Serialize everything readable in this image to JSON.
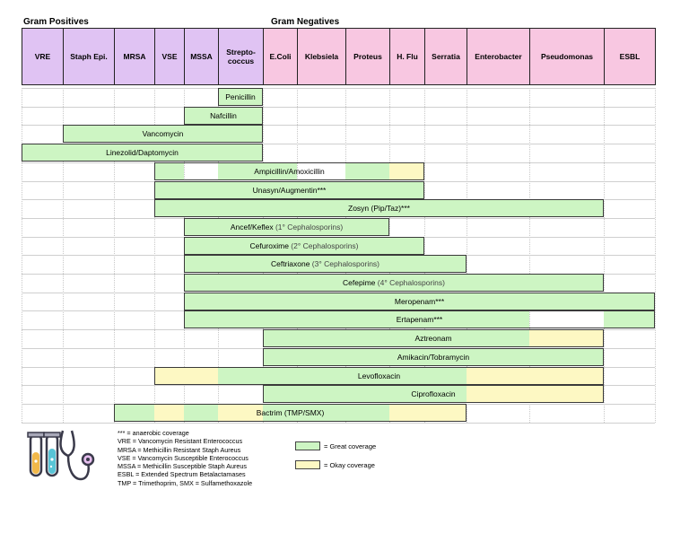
{
  "groups": {
    "positives": "Gram Positives",
    "negatives": "Gram Negatives"
  },
  "columns": [
    {
      "id": "vre",
      "label": "VRE",
      "group": "pos"
    },
    {
      "id": "staph_epi",
      "label": "Staph Epi.",
      "group": "pos"
    },
    {
      "id": "mrsa",
      "label": "MRSA",
      "group": "pos"
    },
    {
      "id": "vse",
      "label": "VSE",
      "group": "pos"
    },
    {
      "id": "mssa",
      "label": "MSSA",
      "group": "pos"
    },
    {
      "id": "strep",
      "label": "Strepto-coccus",
      "group": "pos"
    },
    {
      "id": "ecoli",
      "label": "E.Coli",
      "group": "neg"
    },
    {
      "id": "klebsiela",
      "label": "Klebsiela",
      "group": "neg"
    },
    {
      "id": "proteus",
      "label": "Proteus",
      "group": "neg"
    },
    {
      "id": "hflu",
      "label": "H. Flu",
      "group": "neg"
    },
    {
      "id": "serratia",
      "label": "Serratia",
      "group": "neg"
    },
    {
      "id": "enterobacter",
      "label": "Enterobacter",
      "group": "neg"
    },
    {
      "id": "pseudomonas",
      "label": "Pseudomonas",
      "group": "neg"
    },
    {
      "id": "esbl",
      "label": "ESBL",
      "group": "neg"
    }
  ],
  "drugs": [
    {
      "name": "Penicillin",
      "generation": "",
      "coverage": {
        "great": [
          5
        ]
      },
      "okay": []
    },
    {
      "name": "Nafcillin",
      "generation": "",
      "coverage": {
        "great": [
          4,
          5
        ]
      },
      "okay": []
    },
    {
      "name": "Vancomycin",
      "generation": "",
      "coverage": {
        "great": [
          1,
          2,
          3,
          4,
          5
        ]
      },
      "okay": []
    },
    {
      "name": "Linezolid/Daptomycin",
      "generation": "",
      "coverage": {
        "great": [
          0,
          1,
          2,
          3,
          4,
          5
        ]
      },
      "okay": []
    },
    {
      "name": "Ampicillin/Amoxicillin",
      "generation": "",
      "coverage": {
        "great": [
          3,
          5,
          6,
          8
        ]
      },
      "okay": [
        9
      ]
    },
    {
      "name": "Unasyn/Augmentin***",
      "generation": "",
      "coverage": {
        "great": [
          3,
          4,
          5,
          6,
          7,
          8,
          9
        ]
      },
      "okay": []
    },
    {
      "name": "Zosyn (Pip/Taz)***",
      "generation": "",
      "coverage": {
        "great": [
          3,
          4,
          5,
          6,
          7,
          8,
          9,
          10,
          11,
          12
        ]
      },
      "okay": []
    },
    {
      "name": "Ancef/Keflex",
      "generation": "(1° Cephalosporins)",
      "coverage": {
        "great": [
          4,
          5,
          6,
          7,
          8
        ]
      },
      "okay": []
    },
    {
      "name": "Cefuroxime",
      "generation": "(2° Cephalosporins)",
      "coverage": {
        "great": [
          4,
          5,
          6,
          7,
          8,
          9
        ]
      },
      "okay": []
    },
    {
      "name": "Ceftriaxone",
      "generation": "(3° Cephalosporins)",
      "coverage": {
        "great": [
          4,
          5,
          6,
          7,
          8,
          9,
          10
        ]
      },
      "okay": []
    },
    {
      "name": "Cefepime",
      "generation": "(4° Cephalosporins)",
      "coverage": {
        "great": [
          4,
          5,
          6,
          7,
          8,
          9,
          10,
          11,
          12
        ]
      },
      "okay": []
    },
    {
      "name": "Meropenam***",
      "generation": "",
      "coverage": {
        "great": [
          4,
          5,
          6,
          7,
          8,
          9,
          10,
          11,
          12,
          13
        ]
      },
      "okay": []
    },
    {
      "name": "Ertapenam***",
      "generation": "",
      "coverage": {
        "great": [
          4,
          5,
          6,
          7,
          8,
          9,
          10,
          11,
          13
        ]
      },
      "okay": []
    },
    {
      "name": "Aztreonam",
      "generation": "",
      "coverage": {
        "great": [
          6,
          7,
          8,
          9,
          10,
          11
        ]
      },
      "okay": [
        12
      ]
    },
    {
      "name": "Amikacin/Tobramycin",
      "generation": "",
      "coverage": {
        "great": [
          6,
          7,
          8,
          9,
          10,
          11,
          12
        ]
      },
      "okay": []
    },
    {
      "name": "Levofloxacin",
      "generation": "",
      "coverage": {
        "great": [
          5,
          6,
          7,
          8,
          9,
          10
        ]
      },
      "okay": [
        3,
        4,
        11,
        12
      ]
    },
    {
      "name": "Ciprofloxacin",
      "generation": "",
      "coverage": {
        "great": [
          6,
          7,
          8,
          9,
          10
        ]
      },
      "okay": [
        11,
        12
      ]
    },
    {
      "name": "Bactrim (TMP/SMX)",
      "generation": "",
      "coverage": {
        "great": [
          2,
          4,
          6,
          7,
          8
        ]
      },
      "okay": [
        3,
        5,
        9,
        10
      ]
    }
  ],
  "notes": [
    "*** = anaerobic coverage",
    "VRE = Vancomycin Resistant Enterococcus",
    "MRSA = Methicillin Resistant Staph Aureus",
    "VSE = Vancomycin Susceptible Enterococcus",
    "MSSA = Methicillin Susceptible Staph Aureus",
    "ESBL = Extended Spectrum Betalactamases",
    "TMP = Trimethoprim, SMX = Sulfamethoxazole"
  ],
  "key": {
    "great": "= Great coverage",
    "okay": "= Okay coverage"
  },
  "colors": {
    "great": "#cdf5c3",
    "okay": "#fdf8c3",
    "positives": "#e0c3f3",
    "negatives": "#f8c7e1"
  },
  "icons": {
    "logo": "test-tubes-stethoscope-icon"
  }
}
